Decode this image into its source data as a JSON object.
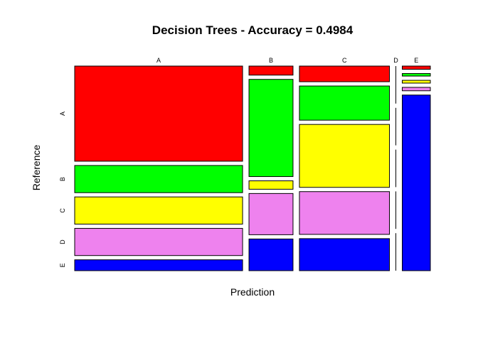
{
  "chart_data": {
    "type": "mosaic",
    "title": "Decision Trees - Accuracy =  0.4984",
    "xlabel": "Prediction",
    "ylabel": "Reference",
    "x_categories": [
      "A",
      "B",
      "C",
      "D",
      "E"
    ],
    "y_categories": [
      "A",
      "B",
      "C",
      "D",
      "E"
    ],
    "colors": {
      "A": "#FF0000",
      "B": "#00FF00",
      "C": "#FFFF00",
      "D": "#EE82EE",
      "E": "#0000FF"
    },
    "column_shares": [
      0.4233,
      0.111,
      0.227,
      0.0,
      0.0708
    ],
    "cell_shares": {
      "A": [
        0.4667,
        0.1333,
        0.1333,
        0.1333,
        0.0533
      ],
      "B": [
        0.0431,
        0.4635,
        0.0401,
        0.1966,
        0.1511
      ],
      "C": [
        0.0774,
        0.169,
        0.311,
        0.2113,
        0.1584
      ],
      "D": [
        0.2,
        0.2,
        0.2,
        0.2,
        0.2
      ],
      "E": [
        0.0162,
        0.0128,
        0.014,
        0.0172,
        0.8874
      ]
    }
  }
}
